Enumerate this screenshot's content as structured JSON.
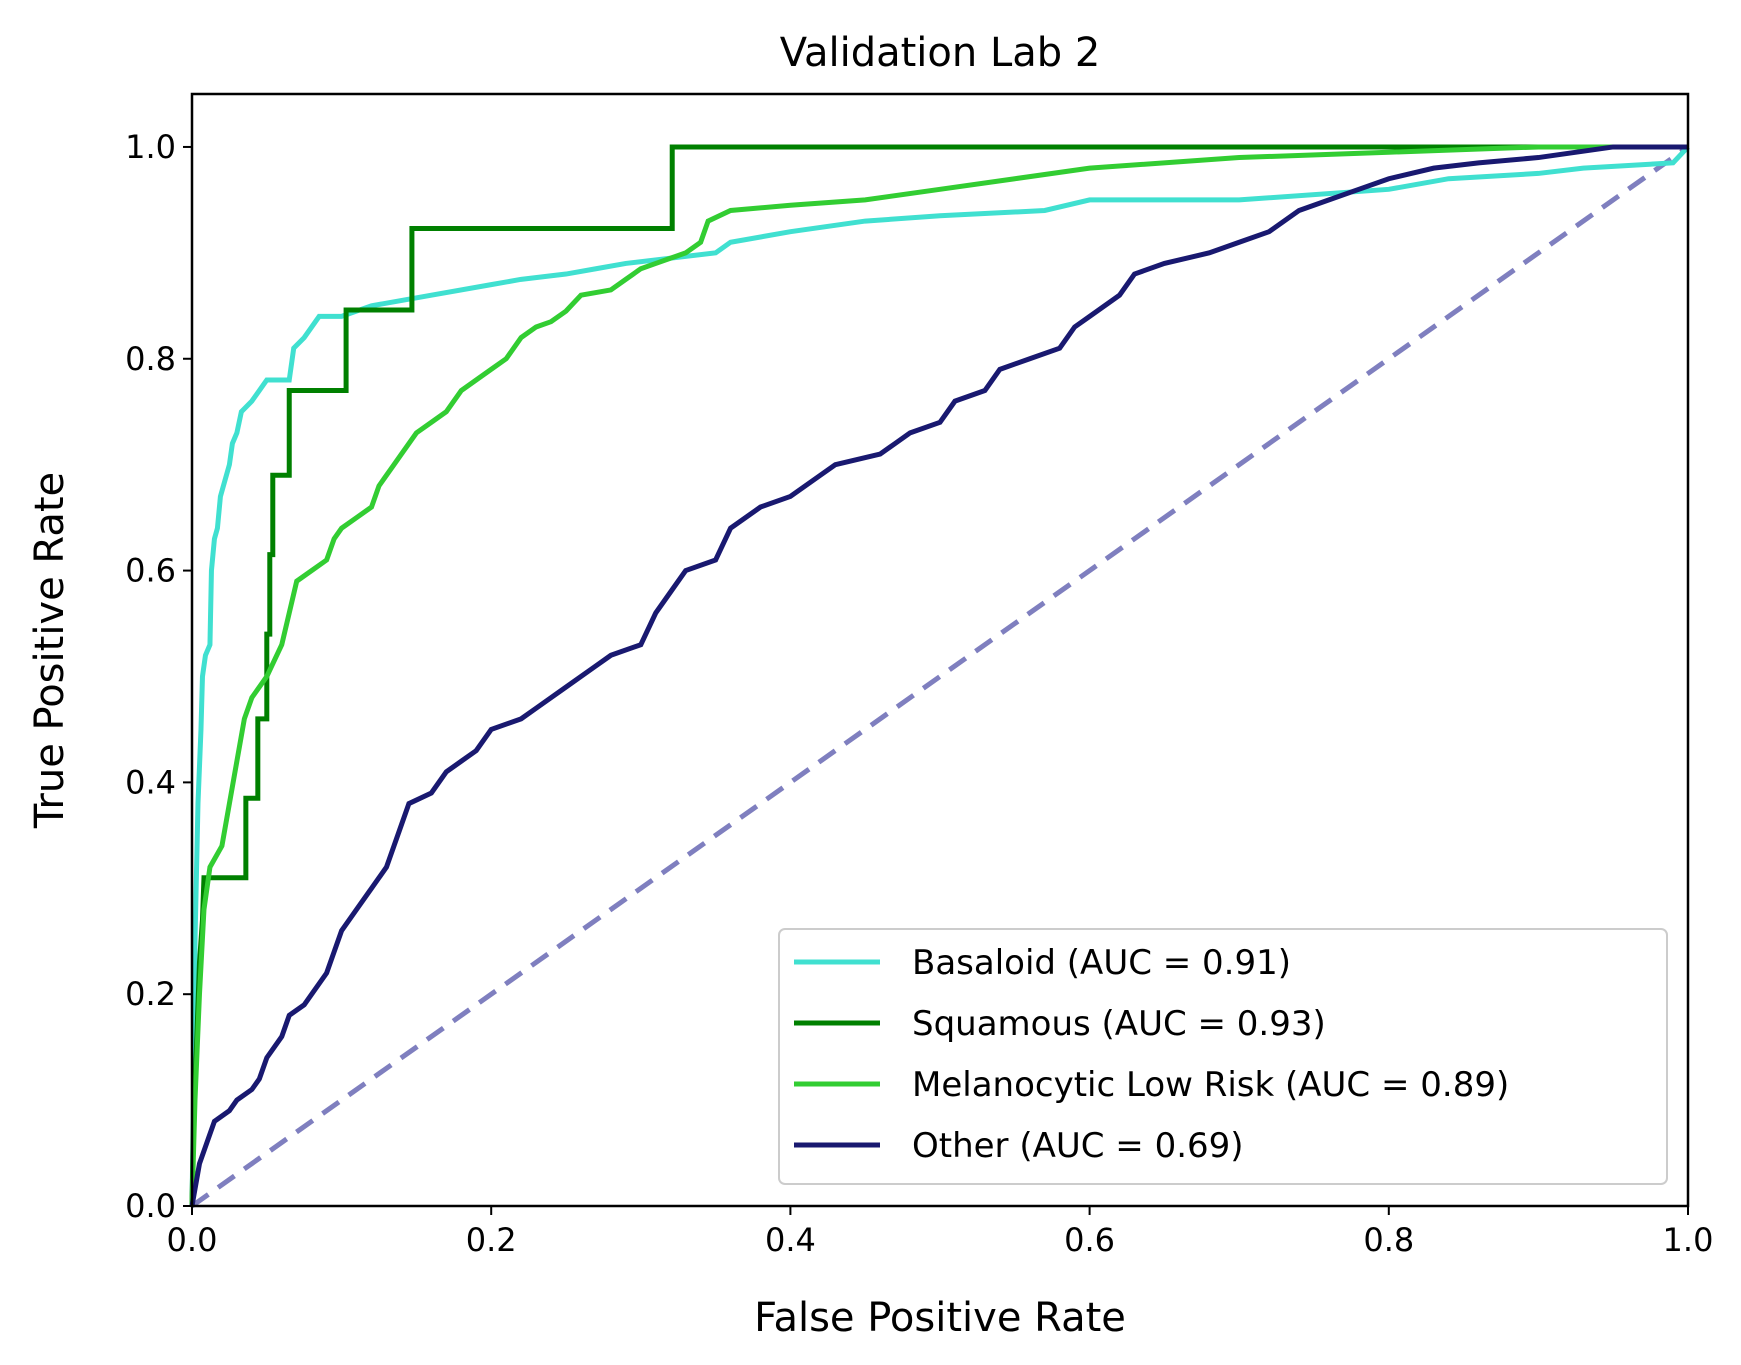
{
  "chart_data": {
    "type": "line",
    "title": "Validation Lab 2",
    "xlabel": "False Positive Rate",
    "ylabel": "True Positive Rate",
    "xlim": [
      0.0,
      1.0
    ],
    "ylim": [
      0.0,
      1.05
    ],
    "xticks": [
      "0.0",
      "0.2",
      "0.4",
      "0.6",
      "0.8",
      "1.0"
    ],
    "yticks": [
      "0.0",
      "0.2",
      "0.4",
      "0.6",
      "0.8",
      "1.0"
    ],
    "grid": false,
    "legend_position": "lower right",
    "series": [
      {
        "name": "Basaloid (AUC = 0.91)",
        "color": "#40e0d0",
        "points": [
          [
            0,
            0
          ],
          [
            0.001,
            0.1
          ],
          [
            0.002,
            0.25
          ],
          [
            0.004,
            0.38
          ],
          [
            0.006,
            0.45
          ],
          [
            0.007,
            0.5
          ],
          [
            0.009,
            0.52
          ],
          [
            0.012,
            0.53
          ],
          [
            0.013,
            0.6
          ],
          [
            0.015,
            0.63
          ],
          [
            0.017,
            0.64
          ],
          [
            0.019,
            0.67
          ],
          [
            0.021,
            0.68
          ],
          [
            0.025,
            0.7
          ],
          [
            0.027,
            0.72
          ],
          [
            0.03,
            0.73
          ],
          [
            0.033,
            0.75
          ],
          [
            0.04,
            0.76
          ],
          [
            0.045,
            0.77
          ],
          [
            0.05,
            0.78
          ],
          [
            0.065,
            0.78
          ],
          [
            0.068,
            0.81
          ],
          [
            0.075,
            0.82
          ],
          [
            0.085,
            0.84
          ],
          [
            0.1,
            0.84
          ],
          [
            0.12,
            0.85
          ],
          [
            0.16,
            0.86
          ],
          [
            0.2,
            0.87
          ],
          [
            0.22,
            0.875
          ],
          [
            0.25,
            0.88
          ],
          [
            0.27,
            0.885
          ],
          [
            0.29,
            0.89
          ],
          [
            0.35,
            0.9
          ],
          [
            0.36,
            0.91
          ],
          [
            0.4,
            0.92
          ],
          [
            0.45,
            0.93
          ],
          [
            0.5,
            0.935
          ],
          [
            0.57,
            0.94
          ],
          [
            0.6,
            0.95
          ],
          [
            0.7,
            0.95
          ],
          [
            0.8,
            0.96
          ],
          [
            0.84,
            0.97
          ],
          [
            0.9,
            0.975
          ],
          [
            0.93,
            0.98
          ],
          [
            0.99,
            0.985
          ],
          [
            1.0,
            1.0
          ]
        ],
        "step": false
      },
      {
        "name": "Squamous (AUC = 0.93)",
        "color": "#008000",
        "points": [
          [
            0,
            0
          ],
          [
            0.001,
            0.08
          ],
          [
            0.003,
            0.15
          ],
          [
            0.005,
            0.23
          ],
          [
            0.007,
            0.27
          ],
          [
            0.008,
            0.31
          ],
          [
            0.036,
            0.31
          ],
          [
            0.036,
            0.385
          ],
          [
            0.044,
            0.385
          ],
          [
            0.044,
            0.46
          ],
          [
            0.05,
            0.46
          ],
          [
            0.05,
            0.54
          ],
          [
            0.052,
            0.54
          ],
          [
            0.052,
            0.615
          ],
          [
            0.054,
            0.615
          ],
          [
            0.054,
            0.69
          ],
          [
            0.065,
            0.69
          ],
          [
            0.065,
            0.77
          ],
          [
            0.103,
            0.77
          ],
          [
            0.103,
            0.846
          ],
          [
            0.147,
            0.846
          ],
          [
            0.147,
            0.923
          ],
          [
            0.321,
            0.923
          ],
          [
            0.321,
            1.0
          ],
          [
            1.0,
            1.0
          ]
        ],
        "step": true
      },
      {
        "name": "Melanocytic Low Risk (AUC = 0.89)",
        "color": "#32cd32",
        "points": [
          [
            0,
            0
          ],
          [
            0.002,
            0.1
          ],
          [
            0.005,
            0.2
          ],
          [
            0.008,
            0.28
          ],
          [
            0.012,
            0.32
          ],
          [
            0.02,
            0.34
          ],
          [
            0.025,
            0.38
          ],
          [
            0.03,
            0.42
          ],
          [
            0.035,
            0.46
          ],
          [
            0.04,
            0.48
          ],
          [
            0.05,
            0.5
          ],
          [
            0.06,
            0.53
          ],
          [
            0.065,
            0.56
          ],
          [
            0.07,
            0.59
          ],
          [
            0.08,
            0.6
          ],
          [
            0.09,
            0.61
          ],
          [
            0.095,
            0.63
          ],
          [
            0.1,
            0.64
          ],
          [
            0.11,
            0.65
          ],
          [
            0.12,
            0.66
          ],
          [
            0.125,
            0.68
          ],
          [
            0.135,
            0.7
          ],
          [
            0.14,
            0.71
          ],
          [
            0.15,
            0.73
          ],
          [
            0.16,
            0.74
          ],
          [
            0.17,
            0.75
          ],
          [
            0.18,
            0.77
          ],
          [
            0.19,
            0.78
          ],
          [
            0.2,
            0.79
          ],
          [
            0.21,
            0.8
          ],
          [
            0.22,
            0.82
          ],
          [
            0.23,
            0.83
          ],
          [
            0.24,
            0.835
          ],
          [
            0.25,
            0.845
          ],
          [
            0.26,
            0.86
          ],
          [
            0.28,
            0.865
          ],
          [
            0.29,
            0.875
          ],
          [
            0.3,
            0.885
          ],
          [
            0.31,
            0.89
          ],
          [
            0.32,
            0.895
          ],
          [
            0.33,
            0.9
          ],
          [
            0.34,
            0.91
          ],
          [
            0.345,
            0.93
          ],
          [
            0.36,
            0.94
          ],
          [
            0.4,
            0.945
          ],
          [
            0.45,
            0.95
          ],
          [
            0.5,
            0.96
          ],
          [
            0.55,
            0.97
          ],
          [
            0.6,
            0.98
          ],
          [
            0.7,
            0.99
          ],
          [
            0.8,
            0.995
          ],
          [
            0.9,
            1.0
          ],
          [
            1.0,
            1.0
          ]
        ],
        "step": false
      },
      {
        "name": "Other (AUC = 0.69)",
        "color": "#191970",
        "points": [
          [
            0,
            0
          ],
          [
            0.005,
            0.04
          ],
          [
            0.01,
            0.06
          ],
          [
            0.015,
            0.08
          ],
          [
            0.025,
            0.09
          ],
          [
            0.03,
            0.1
          ],
          [
            0.04,
            0.11
          ],
          [
            0.045,
            0.12
          ],
          [
            0.05,
            0.14
          ],
          [
            0.06,
            0.16
          ],
          [
            0.065,
            0.18
          ],
          [
            0.075,
            0.19
          ],
          [
            0.08,
            0.2
          ],
          [
            0.09,
            0.22
          ],
          [
            0.095,
            0.24
          ],
          [
            0.1,
            0.26
          ],
          [
            0.11,
            0.28
          ],
          [
            0.12,
            0.3
          ],
          [
            0.13,
            0.32
          ],
          [
            0.135,
            0.34
          ],
          [
            0.14,
            0.36
          ],
          [
            0.145,
            0.38
          ],
          [
            0.16,
            0.39
          ],
          [
            0.17,
            0.41
          ],
          [
            0.18,
            0.42
          ],
          [
            0.19,
            0.43
          ],
          [
            0.2,
            0.45
          ],
          [
            0.22,
            0.46
          ],
          [
            0.23,
            0.47
          ],
          [
            0.25,
            0.49
          ],
          [
            0.27,
            0.51
          ],
          [
            0.28,
            0.52
          ],
          [
            0.3,
            0.53
          ],
          [
            0.31,
            0.56
          ],
          [
            0.32,
            0.58
          ],
          [
            0.33,
            0.6
          ],
          [
            0.35,
            0.61
          ],
          [
            0.36,
            0.64
          ],
          [
            0.38,
            0.66
          ],
          [
            0.4,
            0.67
          ],
          [
            0.42,
            0.69
          ],
          [
            0.43,
            0.7
          ],
          [
            0.46,
            0.71
          ],
          [
            0.47,
            0.72
          ],
          [
            0.48,
            0.73
          ],
          [
            0.5,
            0.74
          ],
          [
            0.51,
            0.76
          ],
          [
            0.53,
            0.77
          ],
          [
            0.54,
            0.79
          ],
          [
            0.56,
            0.8
          ],
          [
            0.58,
            0.81
          ],
          [
            0.59,
            0.83
          ],
          [
            0.6,
            0.84
          ],
          [
            0.62,
            0.86
          ],
          [
            0.63,
            0.88
          ],
          [
            0.65,
            0.89
          ],
          [
            0.68,
            0.9
          ],
          [
            0.7,
            0.91
          ],
          [
            0.72,
            0.92
          ],
          [
            0.74,
            0.94
          ],
          [
            0.76,
            0.95
          ],
          [
            0.78,
            0.96
          ],
          [
            0.8,
            0.97
          ],
          [
            0.83,
            0.98
          ],
          [
            0.86,
            0.985
          ],
          [
            0.9,
            0.99
          ],
          [
            0.95,
            1.0
          ],
          [
            1.0,
            1.0
          ]
        ],
        "step": false
      }
    ],
    "reference_line": {
      "name": "chance",
      "color": "#7f7fbf",
      "style": "dashed",
      "points": [
        [
          0,
          0
        ],
        [
          1,
          1
        ]
      ]
    }
  }
}
